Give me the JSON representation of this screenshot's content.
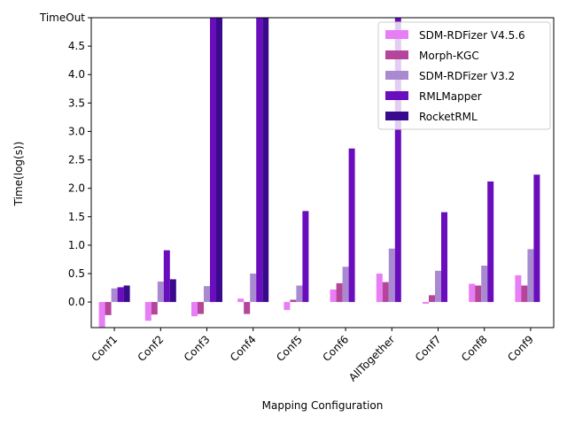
{
  "chart_data": {
    "type": "bar",
    "title": "",
    "xlabel": "Mapping Configuration",
    "ylabel": "Time(log(s))",
    "categories": [
      "Conf1",
      "Conf2",
      "Conf3",
      "Conf4",
      "Conf5",
      "Conf6",
      "AllTogether",
      "Conf7",
      "Conf8",
      "Conf9"
    ],
    "ylim": [
      -0.45,
      5.0
    ],
    "yticks": [
      0.0,
      0.5,
      1.0,
      1.5,
      2.0,
      2.5,
      3.0,
      3.5,
      4.0,
      4.5
    ],
    "ytick_labels": [
      "0.0",
      "0.5",
      "1.0",
      "1.5",
      "2.0",
      "2.5",
      "3.0",
      "3.5",
      "4.0",
      "4.5"
    ],
    "top_tick": {
      "value": 5.0,
      "label": "TimeOut"
    },
    "legend_position": "top-right",
    "grid": false,
    "series": [
      {
        "name": "SDM-RDFizer V4.5.6",
        "color": "#e77ef5",
        "values": [
          -0.45,
          -0.33,
          -0.25,
          0.06,
          -0.14,
          0.22,
          0.5,
          -0.03,
          0.32,
          0.47
        ]
      },
      {
        "name": "Morph-KGC",
        "color": "#b5449b",
        "values": [
          -0.23,
          -0.22,
          -0.21,
          -0.21,
          0.04,
          0.33,
          0.35,
          0.12,
          0.29,
          0.29
        ]
      },
      {
        "name": "SDM-RDFizer V3.2",
        "color": "#a98ad0",
        "values": [
          0.24,
          0.36,
          0.28,
          0.5,
          0.29,
          0.62,
          0.94,
          0.55,
          0.64,
          0.93
        ]
      },
      {
        "name": "RMLMapper",
        "color": "#6a0dbd",
        "values": [
          0.26,
          0.91,
          5.0,
          5.0,
          1.6,
          2.7,
          5.0,
          1.58,
          2.12,
          2.24
        ]
      },
      {
        "name": "RocketRML",
        "color": "#3a0a8c",
        "values": [
          0.29,
          0.4,
          5.0,
          5.0,
          null,
          null,
          null,
          null,
          null,
          null
        ]
      }
    ]
  }
}
